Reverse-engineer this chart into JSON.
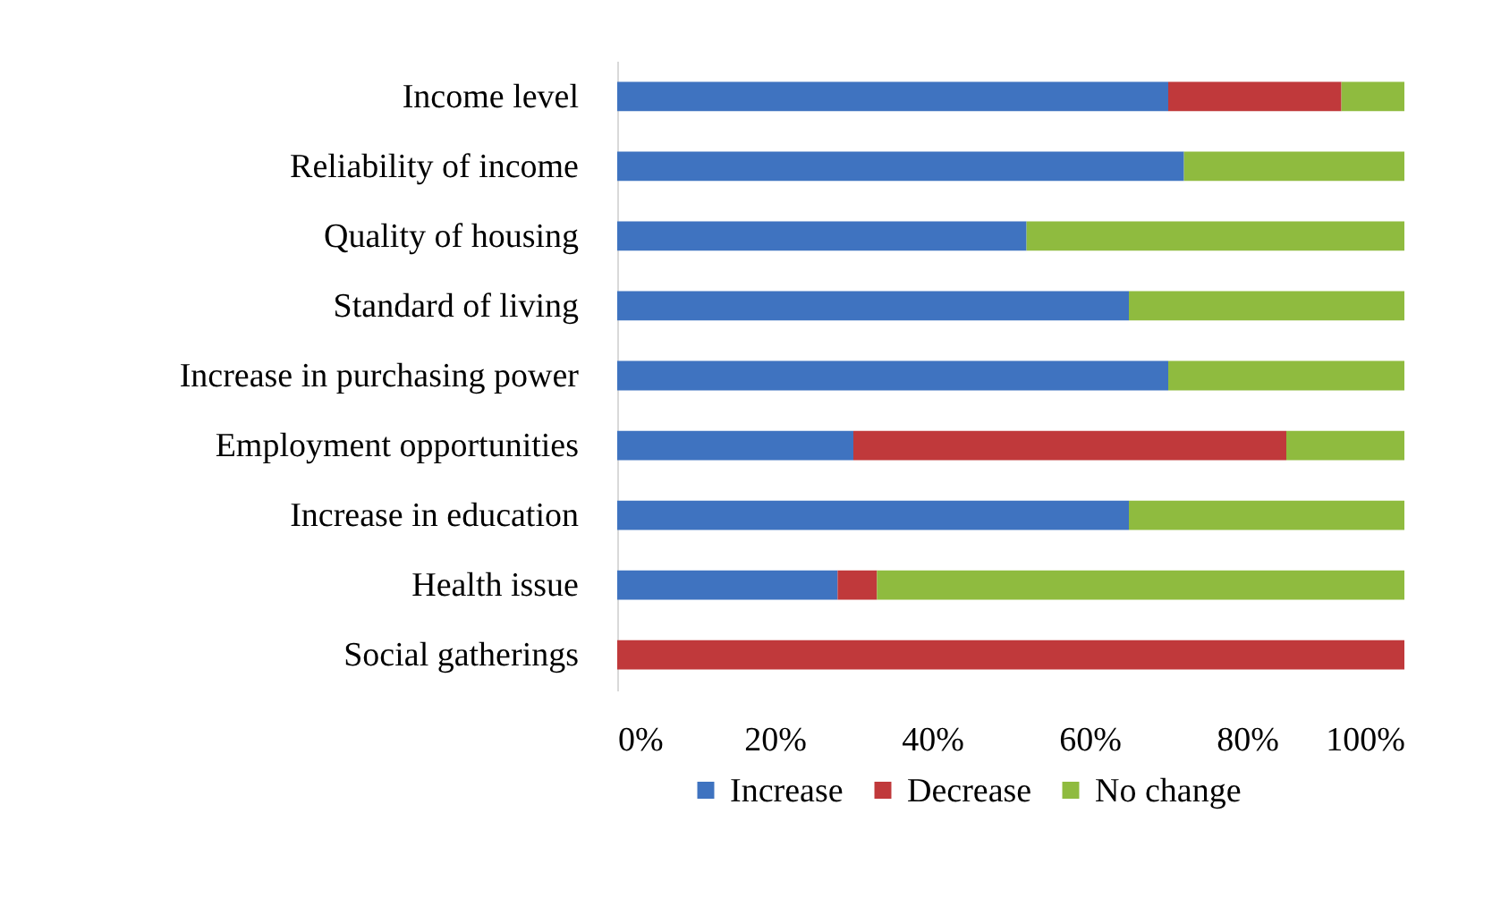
{
  "chart_data": {
    "type": "bar",
    "orientation": "horizontal",
    "stacked": true,
    "categories": [
      "Income level",
      "Reliability of income",
      "Quality of housing",
      "Standard of living",
      "Increase in purchasing power",
      "Employment opportunities",
      "Increase in education",
      "Health issue",
      "Social gatherings"
    ],
    "series": [
      {
        "name": "Increase",
        "color": "#3f73c0",
        "values": [
          70,
          72,
          52,
          65,
          70,
          30,
          65,
          28,
          0
        ]
      },
      {
        "name": "Decrease",
        "color": "#c0393b",
        "values": [
          22,
          0,
          0,
          0,
          0,
          55,
          0,
          5,
          100
        ]
      },
      {
        "name": "No change",
        "color": "#8fbb3f",
        "values": [
          8,
          28,
          48,
          35,
          30,
          15,
          35,
          67,
          0
        ]
      }
    ],
    "xlim": [
      0,
      100
    ],
    "xticks": [
      {
        "value": 0,
        "label": "0%"
      },
      {
        "value": 20,
        "label": "20%"
      },
      {
        "value": 40,
        "label": "40%"
      },
      {
        "value": 60,
        "label": "60%"
      },
      {
        "value": 80,
        "label": "80%"
      },
      {
        "value": 100,
        "label": "100%"
      }
    ],
    "grid": false,
    "legend": "bottom"
  }
}
